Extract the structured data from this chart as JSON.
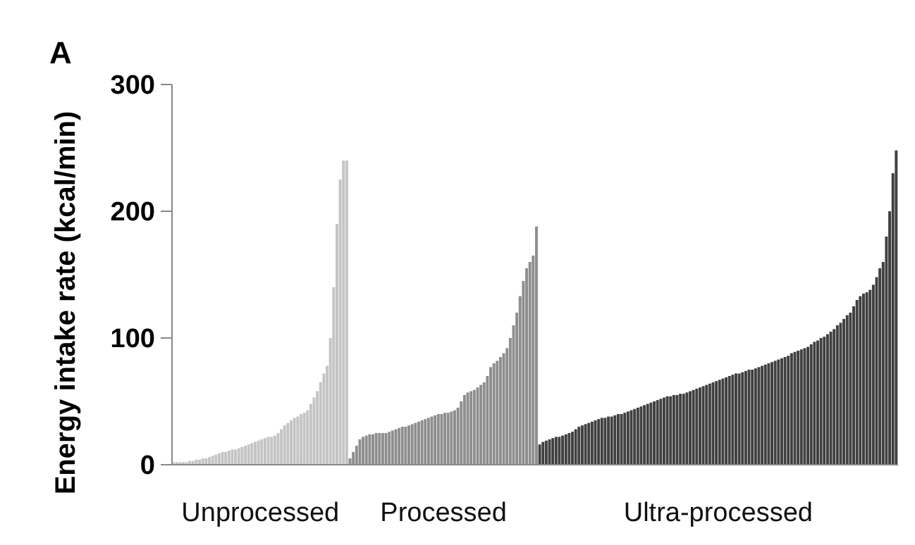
{
  "chart_data": {
    "type": "bar",
    "title": "A",
    "ylabel": "Energy intake rate (kcal/min)",
    "ylim": [
      0,
      300
    ],
    "yticks": [
      0,
      100,
      200,
      300
    ],
    "categories": [
      null,
      null,
      null,
      null,
      null,
      null,
      null,
      null,
      null,
      null,
      null,
      null,
      null,
      null,
      null,
      null,
      null,
      null,
      null,
      null,
      null,
      null,
      null,
      null,
      null,
      null,
      null,
      null,
      null,
      null,
      null,
      null,
      null,
      null,
      null,
      null,
      null,
      null,
      null,
      null,
      null,
      null,
      null,
      null,
      null,
      null,
      null,
      null,
      null,
      null,
      null,
      null,
      null,
      null,
      null,
      null,
      null,
      null,
      null,
      null,
      null,
      null,
      null,
      null,
      null,
      null,
      null,
      null,
      null,
      null,
      null,
      null,
      null,
      null,
      null,
      null,
      null,
      null,
      null,
      null,
      null,
      null,
      null,
      null,
      null,
      null,
      null,
      null,
      null,
      null,
      null,
      null,
      null,
      null,
      null,
      null,
      null,
      null,
      null,
      null,
      null,
      null,
      null,
      null,
      null,
      null,
      null,
      null,
      null,
      null,
      null,
      null,
      null,
      null,
      null,
      null,
      null,
      null,
      null,
      null,
      null,
      null,
      null,
      null,
      null,
      null,
      null,
      null,
      null,
      null,
      null,
      null,
      null,
      null,
      null,
      null,
      null,
      null,
      null,
      null,
      null,
      null,
      null,
      null,
      null,
      null,
      null,
      null,
      null,
      null,
      null,
      null,
      null,
      null,
      null,
      null,
      null,
      null,
      null,
      null,
      null,
      null,
      null,
      null,
      null,
      null,
      null,
      null,
      null,
      null,
      null,
      null,
      null,
      null,
      null,
      null,
      null,
      null,
      null,
      null,
      null,
      null,
      null,
      null,
      null,
      null,
      null,
      null,
      null,
      null,
      null,
      null,
      null,
      null,
      null,
      null,
      null,
      null,
      null,
      null,
      null,
      null,
      null,
      null,
      null,
      null,
      null,
      null,
      null,
      null,
      null,
      null,
      null,
      null,
      null,
      null,
      null,
      null,
      null,
      null,
      null,
      null
    ],
    "series": [
      {
        "name": "Unprocessed",
        "color": "#c4c4c4",
        "values": [
          2,
          2,
          2,
          2,
          2,
          3,
          3,
          4,
          4,
          5,
          5,
          6,
          7,
          8,
          9,
          10,
          10,
          11,
          12,
          12,
          13,
          14,
          15,
          16,
          17,
          18,
          19,
          20,
          21,
          22,
          22,
          23,
          25,
          28,
          31,
          33,
          35,
          37,
          38,
          40,
          41,
          43,
          48,
          53,
          58,
          65,
          72,
          78,
          100,
          140,
          190,
          225,
          240,
          240,
          null,
          null,
          null,
          null,
          null,
          null,
          null,
          null,
          null,
          null,
          null,
          null,
          null,
          null,
          null,
          null,
          null,
          null,
          null,
          null,
          null,
          null,
          null,
          null,
          null,
          null,
          null,
          null,
          null,
          null,
          null,
          null,
          null,
          null,
          null,
          null,
          null,
          null,
          null,
          null,
          null,
          null,
          null,
          null,
          null,
          null,
          null,
          null,
          null,
          null,
          null,
          null,
          null,
          null,
          null,
          null,
          null,
          null,
          null,
          null,
          null,
          null,
          null,
          null,
          null,
          null,
          null,
          null,
          null,
          null,
          null,
          null,
          null,
          null,
          null,
          null,
          null,
          null,
          null,
          null,
          null,
          null,
          null,
          null,
          null,
          null,
          null,
          null,
          null,
          null,
          null,
          null,
          null,
          null,
          null,
          null,
          null,
          null,
          null,
          null,
          null,
          null,
          null,
          null,
          null,
          null,
          null,
          null,
          null,
          null,
          null,
          null,
          null,
          null,
          null,
          null,
          null,
          null,
          null,
          null,
          null,
          null,
          null,
          null,
          null,
          null,
          null,
          null,
          null,
          null,
          null,
          null,
          null,
          null,
          null,
          null,
          null,
          null,
          null,
          null,
          null,
          null,
          null,
          null,
          null,
          null,
          null,
          null,
          null,
          null,
          null,
          null,
          null,
          null,
          null,
          null,
          null,
          null,
          null,
          null,
          null,
          null,
          null,
          null,
          null,
          null,
          null,
          null
        ]
      },
      {
        "name": "Processed",
        "color": "#8e8e8e",
        "values": [
          null,
          null,
          null,
          null,
          null,
          null,
          null,
          null,
          null,
          null,
          null,
          null,
          null,
          null,
          null,
          null,
          null,
          null,
          null,
          null,
          null,
          null,
          null,
          null,
          null,
          null,
          null,
          null,
          null,
          null,
          null,
          null,
          null,
          null,
          null,
          null,
          null,
          null,
          null,
          null,
          null,
          null,
          null,
          null,
          null,
          null,
          null,
          null,
          null,
          null,
          null,
          null,
          null,
          null,
          5,
          10,
          15,
          20,
          22,
          23,
          24,
          24,
          25,
          25,
          25,
          25,
          26,
          27,
          28,
          29,
          30,
          30,
          31,
          32,
          33,
          34,
          35,
          36,
          37,
          38,
          39,
          40,
          40,
          41,
          41,
          42,
          43,
          45,
          50,
          55,
          57,
          58,
          59,
          61,
          63,
          65,
          70,
          77,
          80,
          82,
          85,
          88,
          92,
          100,
          110,
          120,
          133,
          145,
          155,
          160,
          165,
          188,
          null,
          null,
          null,
          null,
          null,
          null,
          null,
          null,
          null,
          null,
          null,
          null,
          null,
          null,
          null,
          null,
          null,
          null,
          null,
          null,
          null,
          null,
          null,
          null,
          null,
          null,
          null,
          null,
          null,
          null,
          null,
          null,
          null,
          null,
          null,
          null,
          null,
          null,
          null,
          null,
          null,
          null,
          null,
          null,
          null,
          null,
          null,
          null,
          null,
          null,
          null,
          null,
          null,
          null,
          null,
          null,
          null,
          null,
          null,
          null,
          null,
          null,
          null,
          null,
          null,
          null,
          null,
          null,
          null,
          null,
          null,
          null,
          null,
          null,
          null,
          null,
          null,
          null,
          null,
          null,
          null,
          null,
          null,
          null,
          null,
          null,
          null,
          null,
          null,
          null,
          null,
          null,
          null,
          null,
          null,
          null,
          null,
          null,
          null,
          null,
          null,
          null,
          null,
          null,
          null,
          null,
          null,
          null,
          null,
          null
        ]
      },
      {
        "name": "Ultra-processed",
        "color": "#404040",
        "values": [
          null,
          null,
          null,
          null,
          null,
          null,
          null,
          null,
          null,
          null,
          null,
          null,
          null,
          null,
          null,
          null,
          null,
          null,
          null,
          null,
          null,
          null,
          null,
          null,
          null,
          null,
          null,
          null,
          null,
          null,
          null,
          null,
          null,
          null,
          null,
          null,
          null,
          null,
          null,
          null,
          null,
          null,
          null,
          null,
          null,
          null,
          null,
          null,
          null,
          null,
          null,
          null,
          null,
          null,
          null,
          null,
          null,
          null,
          null,
          null,
          null,
          null,
          null,
          null,
          null,
          null,
          null,
          null,
          null,
          null,
          null,
          null,
          null,
          null,
          null,
          null,
          null,
          null,
          null,
          null,
          null,
          null,
          null,
          null,
          null,
          null,
          null,
          null,
          null,
          null,
          null,
          null,
          null,
          null,
          null,
          null,
          null,
          null,
          null,
          null,
          null,
          null,
          null,
          null,
          null,
          null,
          null,
          null,
          null,
          null,
          null,
          null,
          16,
          18,
          19,
          20,
          21,
          22,
          22,
          23,
          24,
          25,
          26,
          28,
          30,
          31,
          32,
          33,
          34,
          35,
          36,
          37,
          37,
          38,
          38,
          39,
          40,
          40,
          41,
          42,
          43,
          44,
          45,
          46,
          47,
          48,
          49,
          50,
          51,
          52,
          53,
          54,
          54,
          55,
          55,
          56,
          56,
          57,
          58,
          59,
          60,
          61,
          62,
          63,
          64,
          65,
          66,
          67,
          68,
          69,
          70,
          71,
          72,
          72,
          73,
          74,
          75,
          75,
          76,
          77,
          78,
          79,
          80,
          81,
          82,
          83,
          84,
          85,
          86,
          88,
          89,
          90,
          91,
          92,
          93,
          95,
          97,
          98,
          100,
          101,
          103,
          105,
          107,
          110,
          112,
          115,
          118,
          120,
          125,
          130,
          133,
          135,
          136,
          138,
          142,
          148,
          155,
          160,
          180,
          200,
          230,
          248
        ]
      }
    ]
  }
}
